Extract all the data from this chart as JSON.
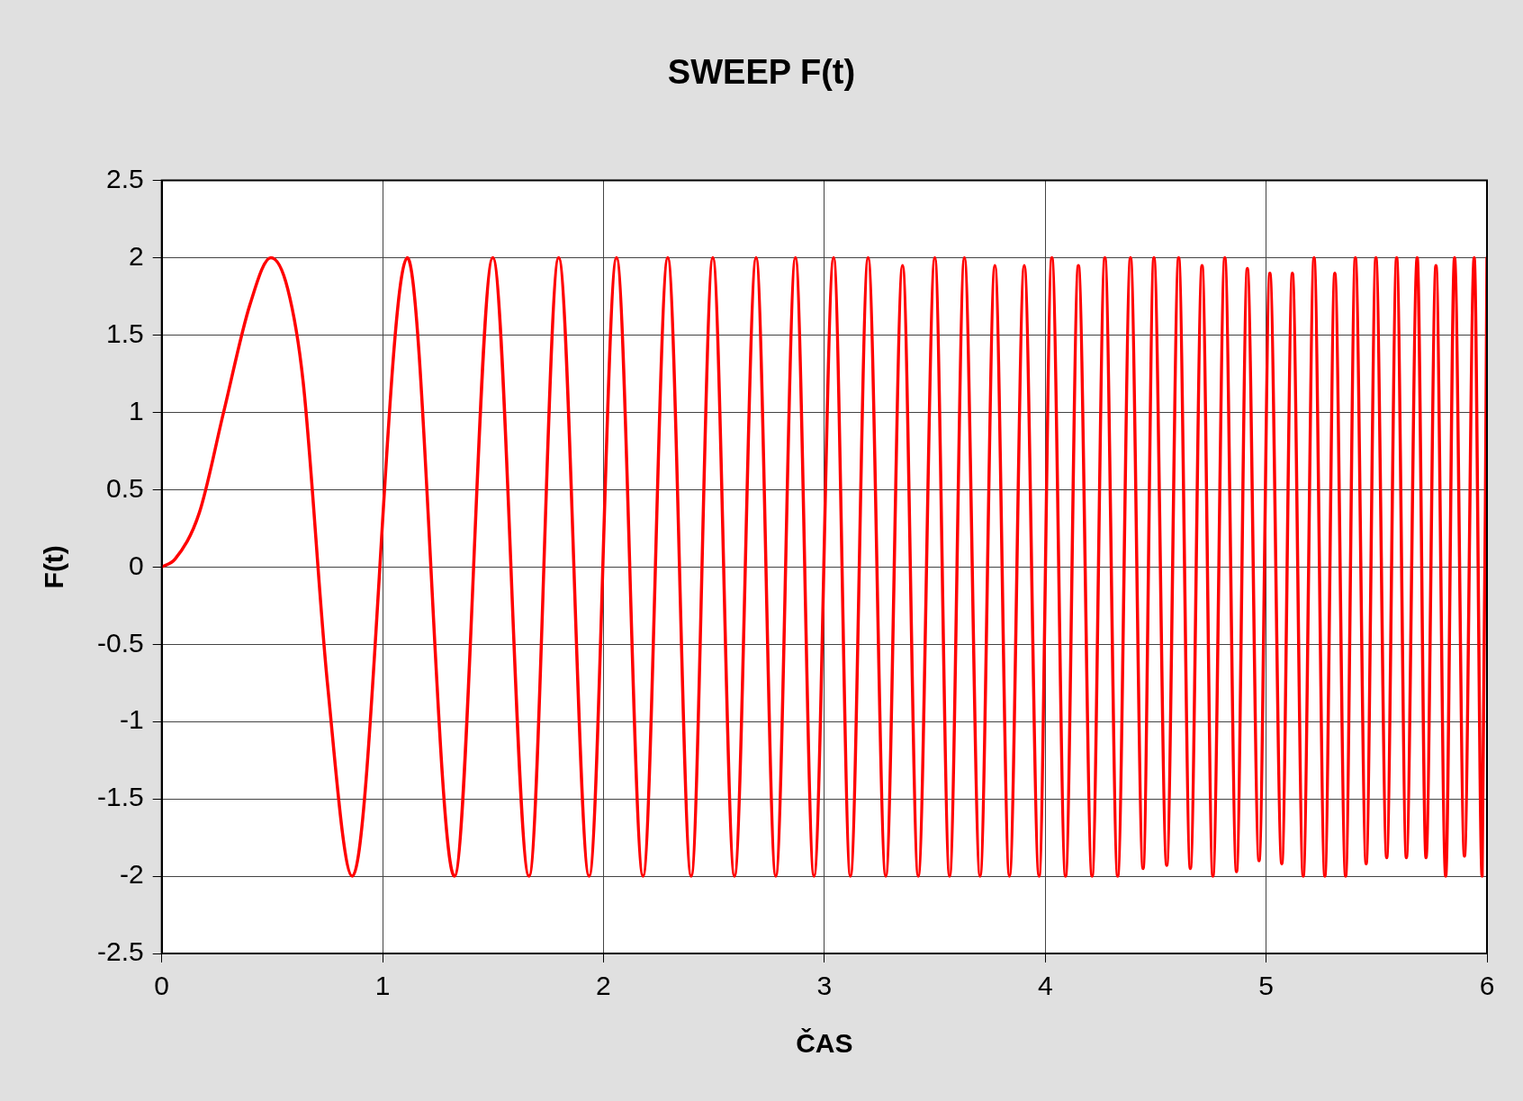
{
  "chart_data": {
    "type": "line",
    "title": "SWEEP F(t)",
    "xlabel": "ČAS",
    "ylabel": "F(t)",
    "xlim": [
      0,
      6
    ],
    "xticks": [
      0,
      1,
      2,
      3,
      4,
      5,
      6
    ],
    "ylim": [
      -2.5,
      2.5
    ],
    "yticks": [
      -2.5,
      -2,
      -1.5,
      -1,
      -0.5,
      0,
      0.5,
      1,
      1.5,
      2,
      2.5
    ],
    "grid": true,
    "legend": false,
    "marker": "none",
    "line_style": "solid",
    "series": [
      {
        "color": "#ff0000",
        "x": [
          0,
          0.06,
          0.17,
          0.28,
          0.4,
          0.494,
          0.57,
          0.64,
          0.75,
          0.863,
          1.112,
          1.325,
          1.499,
          1.663,
          1.797,
          1.935,
          2.059,
          2.179,
          2.291,
          2.397,
          2.495,
          2.593,
          2.691,
          2.78,
          2.869,
          2.953,
          3.042,
          3.118,
          3.198,
          3.278,
          3.354,
          3.425,
          3.5,
          3.567,
          3.634,
          3.705,
          3.772,
          3.838,
          3.905,
          3.972,
          4.03,
          4.092,
          4.15,
          4.212,
          4.27,
          4.328,
          4.386,
          4.443,
          4.492,
          4.55,
          4.604,
          4.657,
          4.71,
          4.759,
          4.813,
          4.866,
          4.915,
          4.968,
          5.017,
          5.071,
          5.119,
          5.168,
          5.217,
          5.266,
          5.311,
          5.36,
          5.404,
          5.453,
          5.497,
          5.546,
          5.591,
          5.635,
          5.684,
          5.724,
          5.769,
          5.813,
          5.853,
          5.898,
          5.942,
          5.978,
          6
        ],
        "values": [
          0,
          0.05,
          0.35,
          1,
          1.7,
          2,
          1.8,
          1.2,
          -0.75,
          -2,
          2,
          -2,
          2,
          -2,
          2,
          -2,
          2,
          -2,
          2,
          -2,
          2,
          -2,
          2,
          -2,
          2,
          -2,
          2,
          -2,
          2,
          -2,
          1.95,
          -2,
          2,
          -2,
          2,
          -2,
          1.95,
          -2,
          1.95,
          -2,
          2,
          -2,
          1.95,
          -2,
          2,
          -2,
          2,
          -1.95,
          2,
          -1.93,
          2,
          -1.95,
          1.95,
          -2,
          2,
          -1.97,
          1.93,
          -1.9,
          1.9,
          -1.92,
          1.9,
          -2,
          2,
          -2,
          1.9,
          -2,
          2,
          -1.92,
          2,
          -1.88,
          2,
          -1.88,
          2,
          -1.88,
          1.95,
          -2,
          2,
          -1.87,
          2,
          -2,
          2
        ]
      }
    ]
  }
}
